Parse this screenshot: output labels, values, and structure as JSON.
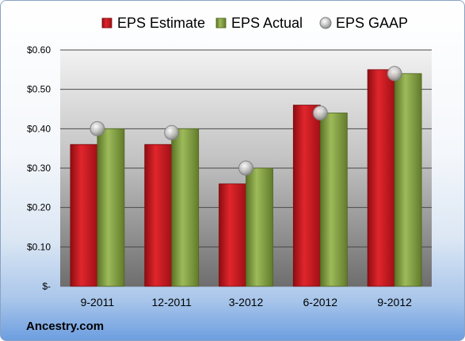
{
  "chart_data": {
    "type": "bar",
    "categories": [
      "9-2011",
      "12-2011",
      "3-2012",
      "6-2012",
      "9-2012"
    ],
    "series": [
      {
        "name": "EPS Estimate",
        "values": [
          0.36,
          0.36,
          0.26,
          0.46,
          0.55
        ],
        "color": "#c8171d",
        "marker": "bar"
      },
      {
        "name": "EPS Actual",
        "values": [
          0.4,
          0.4,
          0.3,
          0.44,
          0.54
        ],
        "color": "#7c9a3c",
        "marker": "bar"
      },
      {
        "name": "EPS GAAP",
        "values": [
          0.4,
          0.39,
          0.3,
          0.44,
          0.54
        ],
        "color": "#b8b8b8",
        "marker": "circle"
      }
    ],
    "yticks": [
      "$-",
      "$0.10",
      "$0.20",
      "$0.30",
      "$0.40",
      "$0.50",
      "$0.60"
    ],
    "ylim": [
      0,
      0.6
    ],
    "grid": true,
    "legend_position": "top"
  },
  "source_label": "Ancestry.com"
}
